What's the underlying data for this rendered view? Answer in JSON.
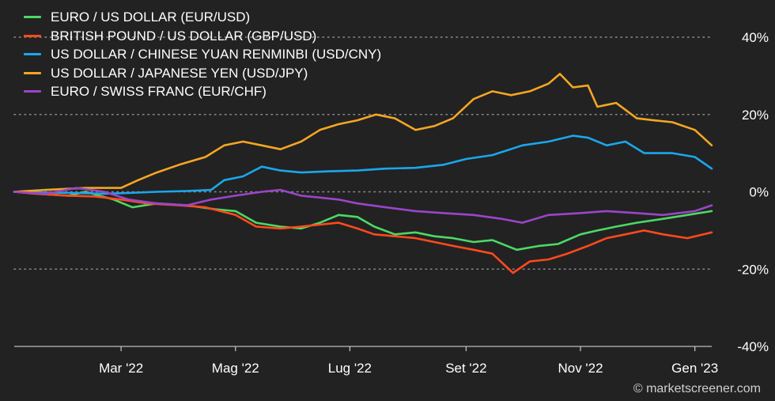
{
  "chart_data": {
    "type": "line",
    "y_unit": "%",
    "ylim": [
      -40,
      40
    ],
    "y_ticks": [
      {
        "value": 40,
        "label": "40%"
      },
      {
        "value": 20,
        "label": "20%"
      },
      {
        "value": 0,
        "label": "0%"
      },
      {
        "value": -20,
        "label": "-20%"
      },
      {
        "value": -40,
        "label": "-40%"
      }
    ],
    "x_range": [
      "2022-01-03",
      "2023-01-10"
    ],
    "x_ticks": [
      {
        "date": "2022-03-01",
        "label": "Mar '22"
      },
      {
        "date": "2022-05-01",
        "label": "Mag '22"
      },
      {
        "date": "2022-07-01",
        "label": "Lug '22"
      },
      {
        "date": "2022-09-01",
        "label": "Set '22"
      },
      {
        "date": "2022-11-01",
        "label": "Nov '22"
      },
      {
        "date": "2023-01-01",
        "label": "Gen '23"
      }
    ],
    "grid": "horizontal-dotted",
    "legend_position": "top-left",
    "series": [
      {
        "name": "EURO / US DOLLAR (EUR/USD)",
        "color": "#4cd964",
        "points": [
          [
            "2022-01-03",
            0
          ],
          [
            "2022-01-15",
            -0.5
          ],
          [
            "2022-02-01",
            -1
          ],
          [
            "2022-02-10",
            0
          ],
          [
            "2022-02-25",
            -2
          ],
          [
            "2022-03-07",
            -4
          ],
          [
            "2022-03-20",
            -3
          ],
          [
            "2022-04-05",
            -3.5
          ],
          [
            "2022-04-20",
            -4.5
          ],
          [
            "2022-05-01",
            -5
          ],
          [
            "2022-05-12",
            -8
          ],
          [
            "2022-05-25",
            -9
          ],
          [
            "2022-06-05",
            -9.5
          ],
          [
            "2022-06-15",
            -8
          ],
          [
            "2022-06-25",
            -6
          ],
          [
            "2022-07-05",
            -6.5
          ],
          [
            "2022-07-14",
            -9
          ],
          [
            "2022-07-25",
            -11
          ],
          [
            "2022-08-05",
            -10.5
          ],
          [
            "2022-08-15",
            -11.5
          ],
          [
            "2022-08-25",
            -12
          ],
          [
            "2022-09-05",
            -13
          ],
          [
            "2022-09-15",
            -12.5
          ],
          [
            "2022-09-28",
            -15
          ],
          [
            "2022-10-10",
            -14
          ],
          [
            "2022-10-20",
            -13.5
          ],
          [
            "2022-11-01",
            -11
          ],
          [
            "2022-11-10",
            -10
          ],
          [
            "2022-11-20",
            -9
          ],
          [
            "2022-12-01",
            -8
          ],
          [
            "2022-12-15",
            -7
          ],
          [
            "2022-12-28",
            -6
          ],
          [
            "2023-01-10",
            -5
          ]
        ]
      },
      {
        "name": "BRITISH POUND / US DOLLAR (GBP/USD)",
        "color": "#ff4a1c",
        "points": [
          [
            "2022-01-03",
            0
          ],
          [
            "2022-01-15",
            -0.5
          ],
          [
            "2022-02-01",
            -1
          ],
          [
            "2022-02-15",
            -1.2
          ],
          [
            "2022-03-01",
            -2
          ],
          [
            "2022-03-15",
            -3
          ],
          [
            "2022-04-01",
            -3.5
          ],
          [
            "2022-04-15",
            -4
          ],
          [
            "2022-05-01",
            -6
          ],
          [
            "2022-05-12",
            -9
          ],
          [
            "2022-05-25",
            -9.5
          ],
          [
            "2022-06-05",
            -9
          ],
          [
            "2022-06-15",
            -8.5
          ],
          [
            "2022-06-25",
            -8
          ],
          [
            "2022-07-05",
            -9.5
          ],
          [
            "2022-07-14",
            -11
          ],
          [
            "2022-07-25",
            -11.5
          ],
          [
            "2022-08-05",
            -12
          ],
          [
            "2022-08-15",
            -13
          ],
          [
            "2022-08-25",
            -14
          ],
          [
            "2022-09-05",
            -15
          ],
          [
            "2022-09-15",
            -16
          ],
          [
            "2022-09-26",
            -21
          ],
          [
            "2022-10-05",
            -18
          ],
          [
            "2022-10-15",
            -17.5
          ],
          [
            "2022-10-25",
            -16
          ],
          [
            "2022-11-05",
            -14
          ],
          [
            "2022-11-15",
            -12
          ],
          [
            "2022-11-25",
            -11
          ],
          [
            "2022-12-05",
            -10
          ],
          [
            "2022-12-15",
            -11
          ],
          [
            "2022-12-28",
            -12
          ],
          [
            "2023-01-10",
            -10.5
          ]
        ]
      },
      {
        "name": "US DOLLAR / CHINESE YUAN RENMINBI (USD/CNY)",
        "color": "#1aa7ec",
        "points": [
          [
            "2022-01-03",
            0
          ],
          [
            "2022-01-20",
            -0.2
          ],
          [
            "2022-02-05",
            -0.3
          ],
          [
            "2022-02-20",
            -0.5
          ],
          [
            "2022-03-05",
            -0.3
          ],
          [
            "2022-03-20",
            0
          ],
          [
            "2022-04-05",
            0.2
          ],
          [
            "2022-04-18",
            0.5
          ],
          [
            "2022-04-25",
            3
          ],
          [
            "2022-05-05",
            4
          ],
          [
            "2022-05-15",
            6.5
          ],
          [
            "2022-05-25",
            5.5
          ],
          [
            "2022-06-05",
            5
          ],
          [
            "2022-06-20",
            5.3
          ],
          [
            "2022-07-05",
            5.5
          ],
          [
            "2022-07-20",
            6
          ],
          [
            "2022-08-05",
            6.2
          ],
          [
            "2022-08-20",
            7
          ],
          [
            "2022-09-01",
            8.5
          ],
          [
            "2022-09-15",
            9.5
          ],
          [
            "2022-10-01",
            12
          ],
          [
            "2022-10-15",
            13
          ],
          [
            "2022-10-28",
            14.5
          ],
          [
            "2022-11-05",
            14
          ],
          [
            "2022-11-15",
            12
          ],
          [
            "2022-11-25",
            13
          ],
          [
            "2022-12-05",
            10
          ],
          [
            "2022-12-20",
            10
          ],
          [
            "2023-01-01",
            9
          ],
          [
            "2023-01-10",
            6
          ]
        ]
      },
      {
        "name": "US DOLLAR / JAPANESE YEN (USD/JPY)",
        "color": "#f5a623",
        "points": [
          [
            "2022-01-03",
            0
          ],
          [
            "2022-01-20",
            0.5
          ],
          [
            "2022-02-10",
            1
          ],
          [
            "2022-03-01",
            1
          ],
          [
            "2022-03-10",
            3
          ],
          [
            "2022-03-20",
            5
          ],
          [
            "2022-04-01",
            7
          ],
          [
            "2022-04-15",
            9
          ],
          [
            "2022-04-25",
            12
          ],
          [
            "2022-05-05",
            13
          ],
          [
            "2022-05-15",
            12
          ],
          [
            "2022-05-25",
            11
          ],
          [
            "2022-06-05",
            13
          ],
          [
            "2022-06-15",
            16
          ],
          [
            "2022-06-25",
            17.5
          ],
          [
            "2022-07-05",
            18.5
          ],
          [
            "2022-07-15",
            20
          ],
          [
            "2022-07-25",
            19
          ],
          [
            "2022-08-05",
            16
          ],
          [
            "2022-08-15",
            17
          ],
          [
            "2022-08-25",
            19
          ],
          [
            "2022-09-05",
            24
          ],
          [
            "2022-09-15",
            26
          ],
          [
            "2022-09-25",
            25
          ],
          [
            "2022-10-05",
            26
          ],
          [
            "2022-10-15",
            28
          ],
          [
            "2022-10-21",
            30.5
          ],
          [
            "2022-10-28",
            27
          ],
          [
            "2022-11-05",
            27.5
          ],
          [
            "2022-11-10",
            22
          ],
          [
            "2022-11-20",
            23
          ],
          [
            "2022-12-01",
            19
          ],
          [
            "2022-12-10",
            18.5
          ],
          [
            "2022-12-20",
            18
          ],
          [
            "2023-01-01",
            16
          ],
          [
            "2023-01-10",
            12
          ]
        ]
      },
      {
        "name": "EURO / SWISS FRANC (EUR/CHF)",
        "color": "#9b45c9",
        "points": [
          [
            "2022-01-03",
            0
          ],
          [
            "2022-01-20",
            -0.5
          ],
          [
            "2022-02-05",
            1
          ],
          [
            "2022-02-20",
            0
          ],
          [
            "2022-03-05",
            -2
          ],
          [
            "2022-03-20",
            -3
          ],
          [
            "2022-04-05",
            -3.5
          ],
          [
            "2022-04-18",
            -2
          ],
          [
            "2022-05-01",
            -1
          ],
          [
            "2022-05-15",
            0
          ],
          [
            "2022-05-25",
            0.5
          ],
          [
            "2022-06-05",
            -1
          ],
          [
            "2022-06-15",
            -1.5
          ],
          [
            "2022-06-25",
            -2
          ],
          [
            "2022-07-05",
            -3
          ],
          [
            "2022-07-20",
            -4
          ],
          [
            "2022-08-05",
            -5
          ],
          [
            "2022-08-20",
            -5.5
          ],
          [
            "2022-09-05",
            -6
          ],
          [
            "2022-09-20",
            -7
          ],
          [
            "2022-10-01",
            -8
          ],
          [
            "2022-10-15",
            -6
          ],
          [
            "2022-11-01",
            -5.5
          ],
          [
            "2022-11-15",
            -5
          ],
          [
            "2022-12-01",
            -5.5
          ],
          [
            "2022-12-15",
            -6
          ],
          [
            "2023-01-01",
            -5
          ],
          [
            "2023-01-10",
            -3.5
          ]
        ]
      }
    ]
  },
  "watermark": "© marketscreener.com"
}
